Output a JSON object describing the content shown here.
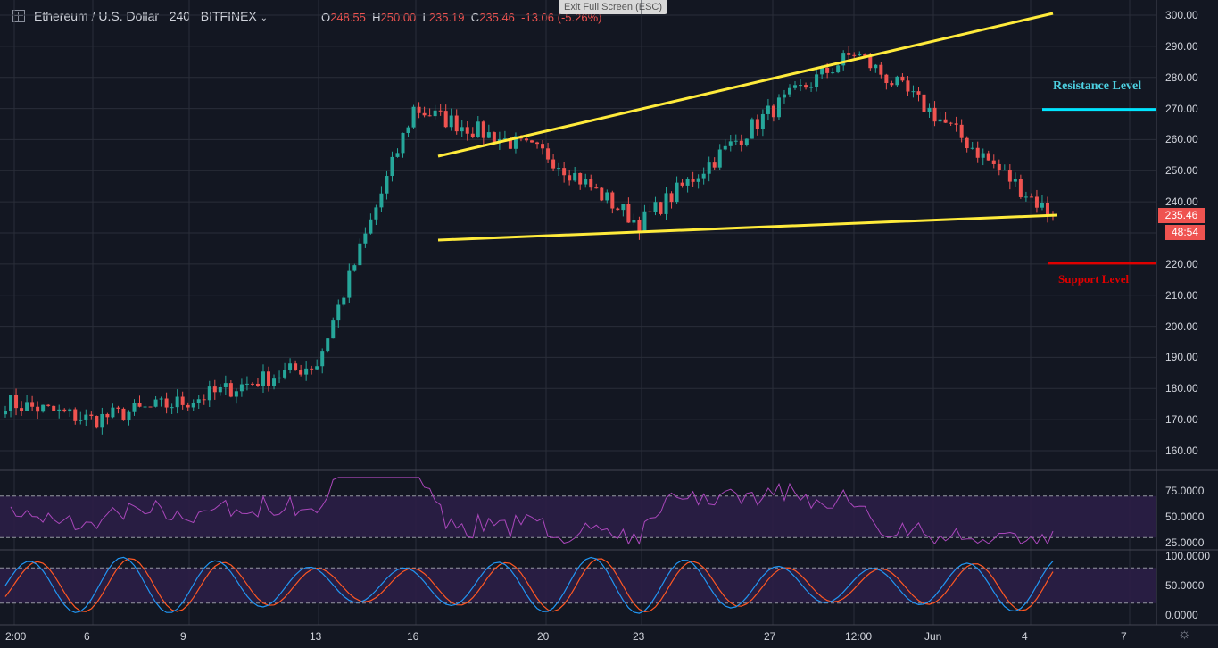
{
  "header": {
    "symbol": "Ethereum / U.S. Dollar",
    "interval": "240",
    "exchange": "BITFINEX",
    "open_label": "O",
    "open": "248.55",
    "high_label": "H",
    "high": "250.00",
    "low_label": "L",
    "low": "235.19",
    "close_label": "C",
    "close": "235.46",
    "change": "-13.06 (-5.26%)",
    "exit_fullscreen": "Exit Full Screen (ESC)"
  },
  "price_axis": {
    "ticks": [
      "300.00",
      "290.00",
      "280.00",
      "270.00",
      "260.00",
      "250.00",
      "240.00",
      "230.00",
      "220.00",
      "210.00",
      "200.00",
      "190.00",
      "180.00",
      "170.00",
      "160.00"
    ],
    "last_price": "235.46",
    "countdown": "48:54"
  },
  "time_axis": [
    "2:00",
    "6",
    "9",
    "13",
    "16",
    "20",
    "23",
    "27",
    "12:00",
    "Jun",
    "4",
    "7"
  ],
  "rsi_axis": [
    "75.0000",
    "50.0000",
    "25.0000"
  ],
  "stoch_axis": [
    "100.0000",
    "50.0000",
    "0.0000"
  ],
  "annotations": {
    "resistance": "Resistance Level",
    "support": "Support Level"
  },
  "colors": {
    "up": "#26a69a",
    "down": "#ef5350",
    "trend": "#ffeb3b",
    "resistance": "#00e5ff",
    "support": "#e00000",
    "rsi": "#ab47bc",
    "stoch_k": "#2196f3",
    "stoch_d": "#ff5722"
  },
  "chart_data": {
    "type": "candlestick",
    "interval_minutes": 240,
    "ylim": [
      155,
      305
    ],
    "close_path": [
      {
        "x": "2:00",
        "y": 175
      },
      {
        "x": "6",
        "y": 170
      },
      {
        "x": "9",
        "y": 176
      },
      {
        "x": "13",
        "y": 188
      },
      {
        "x": "16",
        "y": 270
      },
      {
        "x": "20",
        "y": 255
      },
      {
        "x": "23",
        "y": 233
      },
      {
        "x": "27",
        "y": 270
      },
      {
        "x": "12:00",
        "y": 288
      },
      {
        "x": "Jun",
        "y": 268
      },
      {
        "x": "4",
        "y": 235.46
      }
    ],
    "horizontal_levels": {
      "resistance": 270,
      "support": 220
    }
  }
}
